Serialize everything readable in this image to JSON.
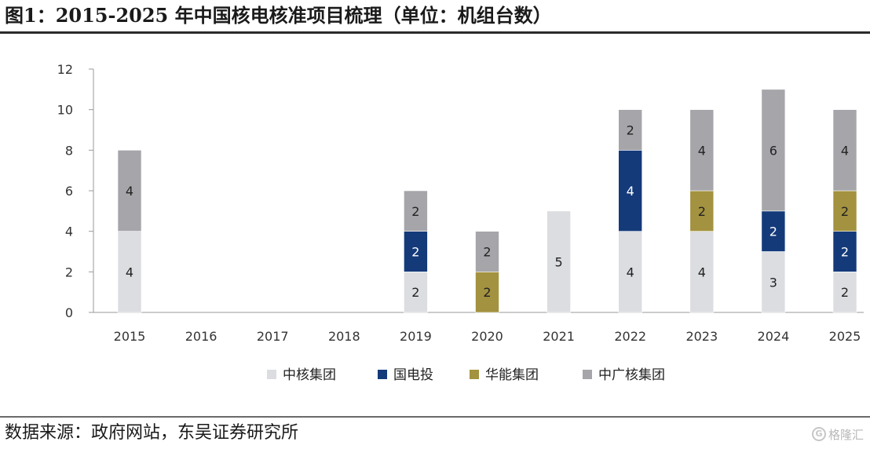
{
  "title": "图1：2015-2025 年中国核电核准项目梳理（单位：机组台数）",
  "source": "数据来源：政府网站，东吴证券研究所",
  "watermark": {
    "text": "格隆汇",
    "logo_glyph": "G"
  },
  "chart_data": {
    "type": "bar",
    "stacked": true,
    "title": "2015-2025 年中国核电核准项目梳理（单位：机组台数）",
    "xlabel": "",
    "ylabel": "",
    "ylim": [
      0,
      12
    ],
    "yticks": [
      0,
      2,
      4,
      6,
      8,
      10,
      12
    ],
    "grid": false,
    "legend_position": "bottom",
    "categories": [
      "2015",
      "2016",
      "2017",
      "2018",
      "2019",
      "2020",
      "2021",
      "2022",
      "2023",
      "2024",
      "2025"
    ],
    "series": [
      {
        "name": "中核集团",
        "color": "#dcdde1",
        "label_color": "dark-text",
        "values": [
          4,
          0,
          0,
          0,
          2,
          0,
          5,
          4,
          4,
          3,
          2
        ]
      },
      {
        "name": "国电投",
        "color": "#143a7a",
        "label_color": "light-text",
        "values": [
          0,
          0,
          0,
          0,
          2,
          0,
          0,
          4,
          0,
          2,
          2
        ]
      },
      {
        "name": "华能集团",
        "color": "#a3923f",
        "label_color": "dark-text",
        "values": [
          0,
          0,
          0,
          0,
          0,
          2,
          0,
          0,
          2,
          0,
          2
        ]
      },
      {
        "name": "中广核集团",
        "color": "#a6a5aa",
        "label_color": "dark-text",
        "values": [
          4,
          0,
          0,
          0,
          2,
          2,
          0,
          2,
          4,
          6,
          4
        ]
      }
    ]
  }
}
